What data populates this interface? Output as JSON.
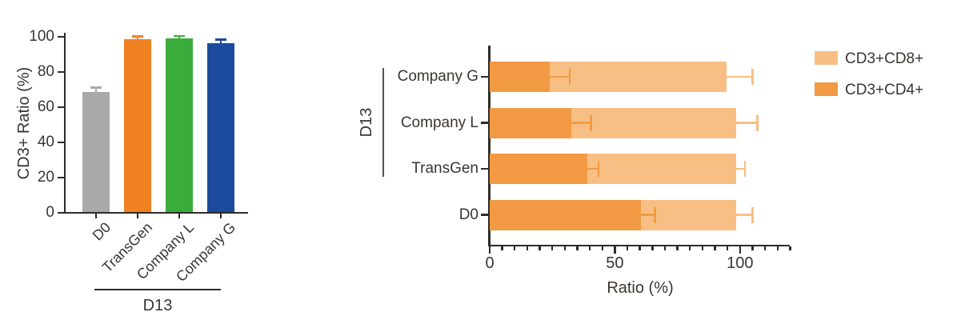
{
  "figure": {
    "background": "#ffffff",
    "axis_color": "#2e2b28",
    "text_color": "#3a3632"
  },
  "chart_data": [
    {
      "type": "bar",
      "title": "",
      "ylabel": "CD3+ Ratio (%)",
      "ylim": [
        0,
        100
      ],
      "yticks": [
        0,
        20,
        40,
        60,
        80,
        100
      ],
      "categories": [
        "D0",
        "TransGen",
        "Company L",
        "Company G"
      ],
      "values": [
        68,
        98,
        98.5,
        96
      ],
      "errors": [
        2.8,
        1.8,
        1.5,
        2
      ],
      "bar_colors": [
        "#A9A9AB",
        "#F08122",
        "#3AAC3C",
        "#1C4B9D"
      ],
      "group": {
        "label": "D13",
        "covers": [
          "TransGen",
          "Company L",
          "Company G"
        ]
      }
    },
    {
      "type": "stacked-bar-horizontal",
      "title": "",
      "xlabel": "Ratio (%)",
      "xlim": [
        0,
        120
      ],
      "xticks": [
        0,
        50,
        100
      ],
      "minor_tick_step": 5,
      "categories": [
        "Company G",
        "Company L",
        "TransGen",
        "D0"
      ],
      "series": [
        {
          "name": "CD3+CD4+",
          "color": "#F29A43",
          "values": [
            24,
            32.5,
            39,
            60.5
          ],
          "errors": [
            8,
            8,
            4.5,
            5.5
          ]
        },
        {
          "name": "CD3+CD8+",
          "color": "#F7BF83",
          "values": [
            70.5,
            66,
            59.5,
            38
          ]
        }
      ],
      "totals": [
        94.5,
        98.5,
        98.5,
        98.5
      ],
      "total_errors": [
        10.5,
        8.5,
        3.5,
        6.5
      ],
      "group": {
        "label": "D13",
        "covers": [
          "Company G",
          "Company L",
          "TransGen"
        ]
      },
      "legend": [
        {
          "label": "CD3+CD8+",
          "color": "#F7BF83"
        },
        {
          "label": "CD3+CD4+",
          "color": "#F29A43"
        }
      ]
    }
  ]
}
